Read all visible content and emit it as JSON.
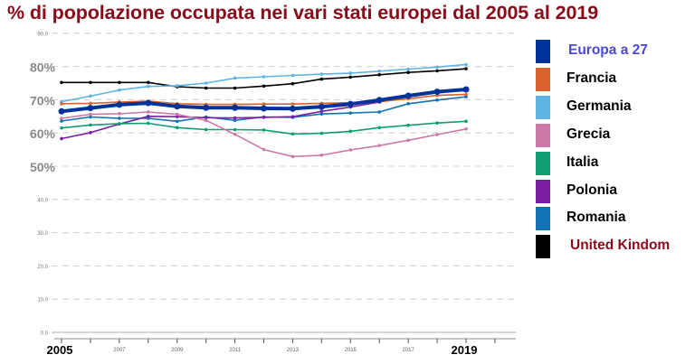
{
  "chart_data": {
    "type": "line",
    "title": "% di popolazione occupata nei vari stati europei dal 2005 al 2019",
    "xlabel": "",
    "ylabel": "",
    "ylim": [
      0,
      90
    ],
    "grid": true,
    "legend_position": "right",
    "x": [
      2005,
      2006,
      2007,
      2008,
      2009,
      2010,
      2011,
      2012,
      2013,
      2014,
      2015,
      2016,
      2017,
      2018,
      2019
    ],
    "x_tick_labels": [
      {
        "year": 2005,
        "label": "2005",
        "big": true
      },
      {
        "year": 2007,
        "label": "2007",
        "big": false
      },
      {
        "year": 2009,
        "label": "2009",
        "big": false
      },
      {
        "year": 2011,
        "label": "2011",
        "big": false
      },
      {
        "year": 2013,
        "label": "2013",
        "big": false
      },
      {
        "year": 2015,
        "label": "2015",
        "big": false
      },
      {
        "year": 2017,
        "label": "2017",
        "big": false
      },
      {
        "year": 2019,
        "label": "2019",
        "big": true
      }
    ],
    "y_tick_labels": [
      {
        "value": 0,
        "label": "0.0",
        "big": false
      },
      {
        "value": 10,
        "label": "10.0",
        "big": false
      },
      {
        "value": 20,
        "label": "20.0",
        "big": false
      },
      {
        "value": 30,
        "label": "30.0",
        "big": false
      },
      {
        "value": 40,
        "label": "40.0",
        "big": false
      },
      {
        "value": 50,
        "label": "50%",
        "big": true
      },
      {
        "value": 60,
        "label": "60%",
        "big": true
      },
      {
        "value": 70,
        "label": "70%",
        "big": true
      },
      {
        "value": 80,
        "label": "80%",
        "big": true
      },
      {
        "value": 90,
        "label": "90.0",
        "big": false
      }
    ],
    "series": [
      {
        "name": "Europa a 27",
        "color": "#003399",
        "label_color": "#4a4ad0",
        "thick": true,
        "values": [
          66.5,
          67.5,
          68.5,
          69.0,
          68.0,
          67.6,
          67.6,
          67.4,
          67.3,
          67.9,
          68.7,
          69.9,
          71.2,
          72.4,
          73.1
        ]
      },
      {
        "name": "Francia",
        "color": "#d9622b",
        "label_color": "#000000",
        "values": [
          68.8,
          68.9,
          69.3,
          69.6,
          68.8,
          68.6,
          68.6,
          68.7,
          68.7,
          68.9,
          69.1,
          69.4,
          70.3,
          71.3,
          71.6
        ]
      },
      {
        "name": "Germania",
        "color": "#5db4e5",
        "label_color": "#000000",
        "values": [
          69.4,
          71.1,
          72.9,
          74.0,
          74.2,
          75.0,
          76.5,
          76.9,
          77.3,
          77.7,
          78.0,
          78.6,
          79.2,
          79.8,
          80.6
        ]
      },
      {
        "name": "Grecia",
        "color": "#cc79a7",
        "label_color": "#000000",
        "values": [
          64.4,
          65.6,
          65.8,
          66.3,
          65.6,
          63.8,
          59.6,
          55.0,
          52.9,
          53.3,
          54.9,
          56.2,
          57.8,
          59.5,
          61.2
        ]
      },
      {
        "name": "Italia",
        "color": "#0f9e72",
        "label_color": "#000000",
        "values": [
          61.5,
          62.4,
          62.8,
          62.9,
          61.6,
          61.0,
          61.0,
          60.9,
          59.7,
          59.9,
          60.5,
          61.6,
          62.3,
          63.0,
          63.5
        ]
      },
      {
        "name": "Polonia",
        "color": "#7b1fa2",
        "label_color": "#000000",
        "values": [
          58.3,
          60.1,
          62.7,
          65.0,
          64.9,
          64.6,
          64.5,
          64.7,
          64.9,
          66.5,
          67.8,
          69.3,
          70.9,
          72.2,
          73.0
        ]
      },
      {
        "name": "Romania",
        "color": "#0f73b4",
        "label_color": "#000000",
        "values": [
          63.6,
          64.8,
          64.4,
          64.4,
          63.5,
          64.8,
          63.8,
          64.8,
          64.7,
          65.7,
          66.0,
          66.3,
          68.8,
          69.9,
          70.9
        ]
      },
      {
        "name": "United Kindom",
        "color": "#000000",
        "label_color": "#8b0a1a",
        "values": [
          75.2,
          75.2,
          75.2,
          75.2,
          73.9,
          73.5,
          73.5,
          74.1,
          74.8,
          76.2,
          76.8,
          77.5,
          78.2,
          78.7,
          79.3
        ]
      }
    ]
  }
}
